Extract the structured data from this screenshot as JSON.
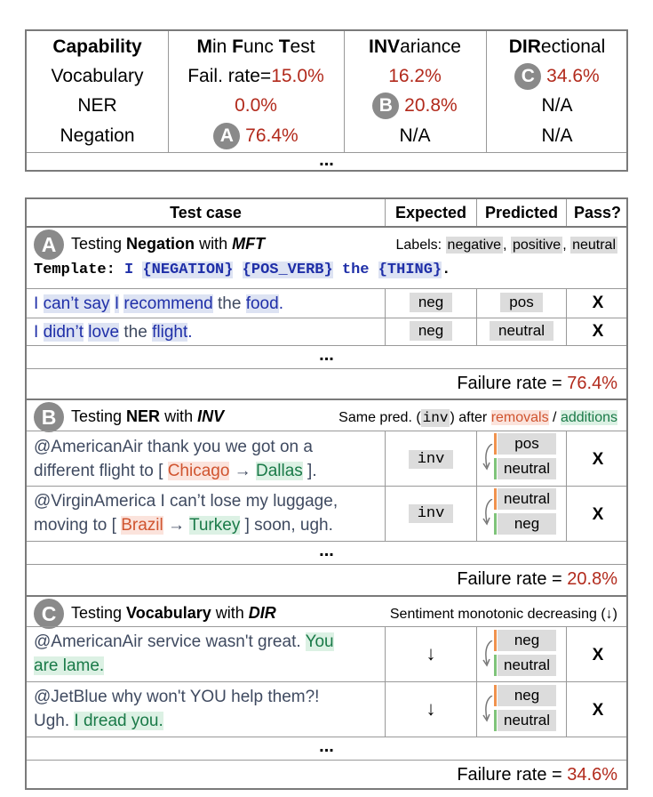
{
  "top_table": {
    "headers": {
      "capability": "Capability",
      "mft": "Min Func Test",
      "mft_parts": [
        "M",
        "in ",
        "F",
        "unc ",
        "T",
        "est"
      ],
      "inv_bold": "INV",
      "inv_rest": "ariance",
      "dir_bold": "DIR",
      "dir_rest": "ectional"
    },
    "rows": [
      {
        "capability": "Vocabulary",
        "mft_prefix": "Fail. rate=",
        "mft": "15.0%",
        "inv": "16.2%",
        "dir_badge": "C",
        "dir": "34.6%"
      },
      {
        "capability": "NER",
        "mft": "0.0%",
        "inv_badge": "B",
        "inv": "20.8%",
        "dir": "N/A"
      },
      {
        "capability": "Negation",
        "mft_badge": "A",
        "mft": "76.4%",
        "inv": "N/A",
        "dir": "N/A"
      }
    ],
    "ellipsis": "..."
  },
  "bottom_table": {
    "headers": {
      "test_case": "Test case",
      "expected": "Expected",
      "predicted": "Predicted",
      "pass": "Pass?"
    },
    "sections": [
      {
        "badge": "A",
        "title_pre": "Testing ",
        "capability": "Negation",
        "title_mid": " with ",
        "test_type": "MFT",
        "note_label": "Labels: ",
        "labels": [
          "negative",
          "positive",
          "neutral"
        ],
        "template_label": "Template:",
        "template_parts": [
          "I",
          "{NEGATION}",
          "{POS_VERB}",
          "the",
          "{THING}"
        ],
        "cases": [
          {
            "parts": [
              "I ",
              "can’t say",
              " ",
              "I",
              " ",
              "recommend",
              " the ",
              "food",
              "."
            ],
            "expected": "neg",
            "predicted": "pos",
            "pass": "X"
          },
          {
            "parts": [
              "I ",
              "didn’t",
              " ",
              "love",
              " the ",
              "flight",
              "."
            ],
            "expected": "neg",
            "predicted": "neutral",
            "pass": "X"
          }
        ],
        "ellipsis": "...",
        "failure_label": "Failure rate = ",
        "failure_rate": "76.4%"
      },
      {
        "badge": "B",
        "title_pre": "Testing ",
        "capability": "NER",
        "title_mid": " with ",
        "test_type": "INV",
        "note_pre": "Same pred. (",
        "note_code": "inv",
        "note_mid": ") after ",
        "note_removals": "removals",
        "note_sep": " / ",
        "note_additions": "additions",
        "cases": [
          {
            "line1": "@AmericanAir thank you we got on a",
            "line2_pre": "different flight to [ ",
            "removed": "Chicago",
            "arrow": " → ",
            "added": "Dallas",
            "line2_post": " ].",
            "expected": "inv",
            "pred_before": "pos",
            "pred_after": "neutral",
            "pass": "X"
          },
          {
            "line1": "@VirginAmerica I can’t lose my luggage,",
            "line2_pre": "moving to [ ",
            "removed": "Brazil",
            "arrow": " → ",
            "added": "Turkey",
            "line2_post": " ] soon, ugh.",
            "expected": "inv",
            "pred_before": "neutral",
            "pred_after": "neg",
            "pass": "X"
          }
        ],
        "ellipsis": "...",
        "failure_label": "Failure rate = ",
        "failure_rate": "20.8%"
      },
      {
        "badge": "C",
        "title_pre": "Testing ",
        "capability": "Vocabulary",
        "title_mid": " with ",
        "test_type": "DIR",
        "note": "Sentiment monotonic decreasing (↓)",
        "cases": [
          {
            "line1_pre": "@AmericanAir service wasn't great. ",
            "line1_add": "You",
            "line2_add": "are lame.",
            "line2_post": "",
            "expected": "↓",
            "pred_before": "neg",
            "pred_after": "neutral",
            "pass": "X"
          },
          {
            "line1_pre": "@JetBlue why won't YOU help them?!",
            "line1_add": "",
            "line2_pre": "Ugh. ",
            "line2_add": "I dread you.",
            "expected": "↓",
            "pred_before": "neg",
            "pred_after": "neutral",
            "pass": "X"
          }
        ],
        "ellipsis": "...",
        "failure_label": "Failure rate = ",
        "failure_rate": "34.6%"
      }
    ]
  }
}
